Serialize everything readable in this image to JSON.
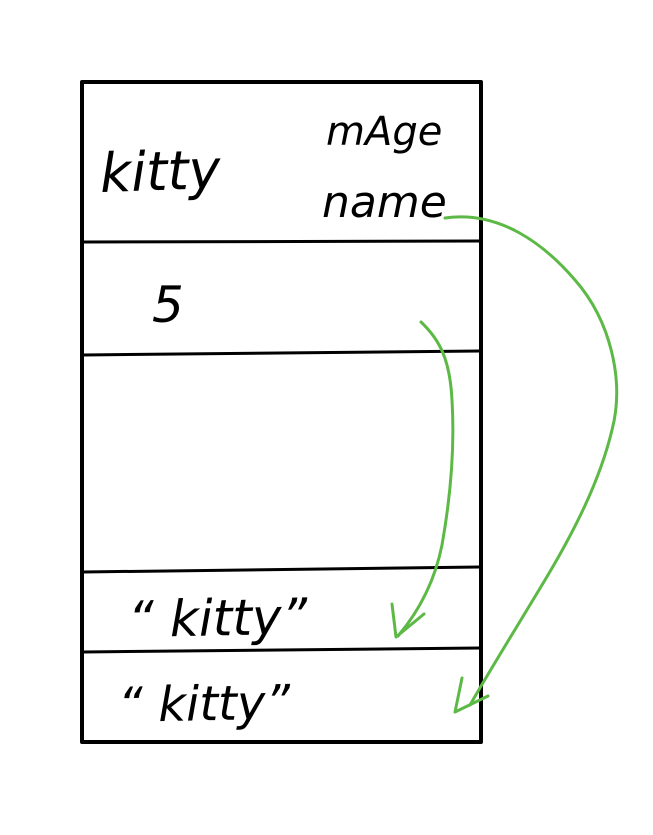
{
  "diagram": {
    "cells": [
      {
        "label": "kitty",
        "members": [
          "mAge",
          "name"
        ]
      },
      {
        "label": "5"
      },
      {
        "label": ""
      },
      {
        "label": "“ kitty”"
      },
      {
        "label": "“ kitty”"
      }
    ],
    "colors": {
      "ink": "#000000",
      "arrow": "#5cb945"
    },
    "arrows": [
      {
        "from": "name",
        "to": "fifth cell"
      },
      {
        "from": "mAge / 5 value cell",
        "to": "fourth cell"
      }
    ]
  }
}
